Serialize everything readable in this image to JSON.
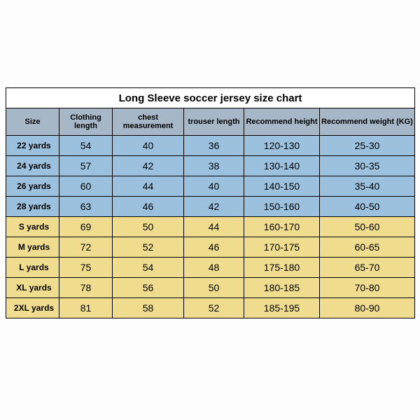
{
  "title": "Long Sleeve soccer jersey size chart",
  "colors": {
    "header_bg": "#a6b8c8",
    "kids_bg": "#9cc1de",
    "adult_bg": "#f0dc8e",
    "border": "#000000",
    "title_bg": "#ffffff"
  },
  "columns": [
    {
      "key": "size",
      "label": "Size"
    },
    {
      "key": "cloth",
      "label": "Clothing length"
    },
    {
      "key": "chest",
      "label": "chest measurement"
    },
    {
      "key": "trouser",
      "label": "trouser length"
    },
    {
      "key": "height",
      "label": "Recommend height"
    },
    {
      "key": "weight",
      "label": "Recommend weight (KG)"
    }
  ],
  "rows": [
    {
      "group": "kids",
      "size": "22 yards",
      "cloth": "54",
      "chest": "40",
      "trouser": "36",
      "height": "120-130",
      "weight": "25-30"
    },
    {
      "group": "kids",
      "size": "24 yards",
      "cloth": "57",
      "chest": "42",
      "trouser": "38",
      "height": "130-140",
      "weight": "30-35"
    },
    {
      "group": "kids",
      "size": "26 yards",
      "cloth": "60",
      "chest": "44",
      "trouser": "40",
      "height": "140-150",
      "weight": "35-40"
    },
    {
      "group": "kids",
      "size": "28 yards",
      "cloth": "63",
      "chest": "46",
      "trouser": "42",
      "height": "150-160",
      "weight": "40-50"
    },
    {
      "group": "adult",
      "size": "S yards",
      "cloth": "69",
      "chest": "50",
      "trouser": "44",
      "height": "160-170",
      "weight": "50-60"
    },
    {
      "group": "adult",
      "size": "M yards",
      "cloth": "72",
      "chest": "52",
      "trouser": "46",
      "height": "170-175",
      "weight": "60-65"
    },
    {
      "group": "adult",
      "size": "L yards",
      "cloth": "75",
      "chest": "54",
      "trouser": "48",
      "height": "175-180",
      "weight": "65-70"
    },
    {
      "group": "adult",
      "size": "XL yards",
      "cloth": "78",
      "chest": "56",
      "trouser": "50",
      "height": "180-185",
      "weight": "70-80"
    },
    {
      "group": "adult",
      "size": "2XL yards",
      "cloth": "81",
      "chest": "58",
      "trouser": "52",
      "height": "185-195",
      "weight": "80-90"
    }
  ]
}
